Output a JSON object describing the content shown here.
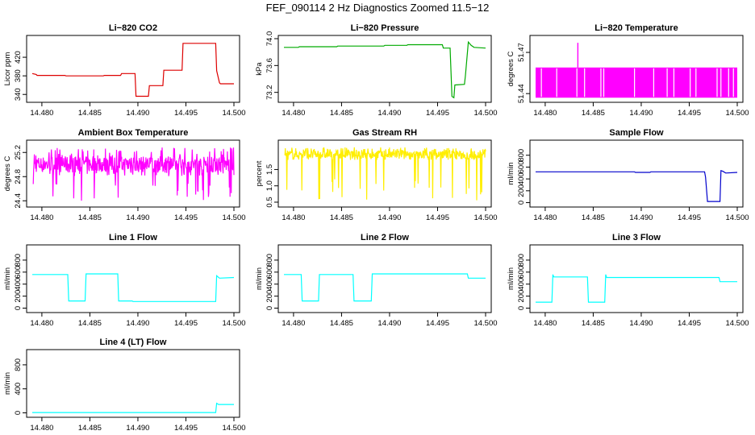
{
  "figure_title": "FEF_090114  2 Hz Diagnostics Zoomed 11.5−12",
  "chart_data": [
    {
      "type": "line",
      "title": "Li−820 CO2",
      "ylabel": "Licor ppm",
      "color": "#dd0000",
      "xlim": [
        14.479,
        14.5
      ],
      "ylim": [
        330,
        460
      ],
      "xticks": [
        14.48,
        14.485,
        14.49,
        14.495,
        14.5
      ],
      "xtick_labels": [
        "14.480",
        "14.485",
        "14.490",
        "14.495",
        "14.500"
      ],
      "yticks": [
        340,
        380,
        420
      ],
      "ytick_labels": [
        "340",
        "380",
        "420"
      ],
      "x": [
        14.479,
        14.4794,
        14.4795,
        14.4824,
        14.4825,
        14.4864,
        14.4865,
        14.4882,
        14.4883,
        14.4897,
        14.4898,
        14.4911,
        14.4912,
        14.4926,
        14.4927,
        14.4946,
        14.4947,
        14.4981,
        14.4982,
        14.4985,
        14.4986,
        14.5
      ],
      "y": [
        385,
        383,
        381,
        381,
        380,
        380,
        381,
        381,
        385,
        385,
        336,
        336,
        359,
        359,
        392,
        392,
        450,
        450,
        391,
        365,
        363,
        363
      ]
    },
    {
      "type": "line",
      "title": "Li−820 Pressure",
      "ylabel": "kPa",
      "color": "#00aa00",
      "xlim": [
        14.479,
        14.5
      ],
      "ylim": [
        73.1,
        74.0
      ],
      "xticks": [
        14.48,
        14.485,
        14.49,
        14.495,
        14.5
      ],
      "xtick_labels": [
        "14.480",
        "14.485",
        "14.490",
        "14.495",
        "14.500"
      ],
      "yticks": [
        73.2,
        73.6,
        74.0
      ],
      "ytick_labels": [
        "73.2",
        "73.6",
        "74.0"
      ],
      "x": [
        14.479,
        14.4805,
        14.4806,
        14.4845,
        14.4846,
        14.4894,
        14.4895,
        14.4918,
        14.4919,
        14.4955,
        14.4956,
        14.4963,
        14.4965,
        14.4967,
        14.4968,
        14.4978,
        14.4979,
        14.4982,
        14.4985,
        14.4988,
        14.5
      ],
      "y": [
        73.87,
        73.87,
        73.88,
        73.88,
        73.89,
        73.89,
        73.9,
        73.9,
        73.91,
        73.91,
        73.86,
        73.86,
        73.14,
        73.12,
        73.31,
        73.32,
        73.45,
        73.95,
        73.9,
        73.87,
        73.86
      ]
    },
    {
      "type": "line",
      "title": "Li−820 Temperature",
      "ylabel": "degrees C",
      "color": "#ff00ff",
      "xlim": [
        14.479,
        14.5
      ],
      "ylim": [
        51.436,
        51.48
      ],
      "xticks": [
        14.48,
        14.485,
        14.49,
        14.495,
        14.5
      ],
      "xtick_labels": [
        "14.480",
        "14.485",
        "14.490",
        "14.495",
        "14.500"
      ],
      "yticks": [
        51.44,
        51.47
      ],
      "ytick_labels": [
        "51.44",
        "51.47"
      ],
      "band": [
        51.437,
        51.459
      ],
      "gaps": [
        14.4796,
        14.4812,
        14.4833,
        14.4841,
        14.4858,
        14.4861,
        14.4893,
        14.4913,
        14.4927,
        14.4934,
        14.4951,
        14.4957,
        14.4979,
        14.4983,
        14.4991,
        14.4996
      ],
      "spike_x": 14.4834,
      "spike_y": [
        51.459,
        51.477
      ]
    },
    {
      "type": "line",
      "title": "Ambient Box Temperature",
      "ylabel": "degrees C",
      "color": "#ff00ff",
      "xlim": [
        14.479,
        14.5
      ],
      "ylim": [
        24.35,
        25.35
      ],
      "xticks": [
        14.48,
        14.485,
        14.49,
        14.495,
        14.5
      ],
      "xtick_labels": [
        "14.480",
        "14.485",
        "14.490",
        "14.495",
        "14.500"
      ],
      "yticks": [
        24.4,
        24.8,
        25.2
      ],
      "ytick_labels": [
        "24.4",
        "24.8",
        "25.2"
      ],
      "baseline": 25.0,
      "noise_range": [
        24.4,
        25.3
      ]
    },
    {
      "type": "line",
      "title": "Gas Stream RH",
      "ylabel": "percent",
      "color": "#ffee00",
      "xlim": [
        14.479,
        14.5
      ],
      "ylim": [
        0.45,
        2.3
      ],
      "xticks": [
        14.48,
        14.485,
        14.49,
        14.495,
        14.5
      ],
      "xtick_labels": [
        "14.480",
        "14.485",
        "14.490",
        "14.495",
        "14.500"
      ],
      "yticks": [
        0.5,
        1.0,
        1.5
      ],
      "ytick_labels": [
        "0.5",
        "1.0",
        "1.5"
      ],
      "baseline": 1.95,
      "noise_range": [
        0.5,
        2.2
      ]
    },
    {
      "type": "line",
      "title": "Sample Flow",
      "ylabel": "ml/min",
      "color": "#0000cc",
      "xlim": [
        14.479,
        14.5
      ],
      "ylim": [
        -20,
        1000
      ],
      "xticks": [
        14.48,
        14.485,
        14.49,
        14.495,
        14.5
      ],
      "xtick_labels": [
        "14.480",
        "14.485",
        "14.490",
        "14.495",
        "14.500"
      ],
      "yticks": [
        0,
        200,
        400,
        600,
        800
      ],
      "ytick_labels": [
        "0",
        "200",
        "400",
        "600",
        "800"
      ],
      "x": [
        14.479,
        14.4893,
        14.4894,
        14.4909,
        14.491,
        14.4966,
        14.4967,
        14.4969,
        14.4982,
        14.4983,
        14.4985,
        14.4988,
        14.5
      ],
      "y": [
        520,
        520,
        510,
        510,
        520,
        520,
        430,
        20,
        20,
        540,
        530,
        500,
        510
      ]
    },
    {
      "type": "line",
      "title": "Line 1 Flow",
      "ylabel": "ml/min",
      "color": "#00ffff",
      "xlim": [
        14.479,
        14.5
      ],
      "ylim": [
        -20,
        1000
      ],
      "xticks": [
        14.48,
        14.485,
        14.49,
        14.495,
        14.5
      ],
      "xtick_labels": [
        "14.480",
        "14.485",
        "14.490",
        "14.495",
        "14.500"
      ],
      "yticks": [
        0,
        200,
        400,
        600,
        800
      ],
      "ytick_labels": [
        "0",
        "200",
        "400",
        "600",
        "800"
      ],
      "x": [
        14.479,
        14.4827,
        14.4828,
        14.4845,
        14.4846,
        14.4879,
        14.488,
        14.4894,
        14.4895,
        14.4981,
        14.4982,
        14.4985,
        14.5
      ],
      "y": [
        560,
        560,
        120,
        120,
        570,
        570,
        120,
        120,
        110,
        110,
        540,
        500,
        510
      ]
    },
    {
      "type": "line",
      "title": "Line 2 Flow",
      "ylabel": "ml/min",
      "color": "#00ffff",
      "xlim": [
        14.479,
        14.5
      ],
      "ylim": [
        -20,
        1000
      ],
      "xticks": [
        14.48,
        14.485,
        14.49,
        14.495,
        14.5
      ],
      "xtick_labels": [
        "14.480",
        "14.485",
        "14.490",
        "14.495",
        "14.500"
      ],
      "yticks": [
        0,
        200,
        400,
        600,
        800
      ],
      "ytick_labels": [
        "0",
        "200",
        "400",
        "600",
        "800"
      ],
      "x": [
        14.479,
        14.4808,
        14.4809,
        14.4826,
        14.4827,
        14.4862,
        14.4863,
        14.4881,
        14.4882,
        14.4981,
        14.4982,
        14.5
      ],
      "y": [
        560,
        560,
        120,
        120,
        560,
        560,
        120,
        120,
        570,
        570,
        500,
        500
      ]
    },
    {
      "type": "line",
      "title": "Line 3 Flow",
      "ylabel": "ml/min",
      "color": "#00ffff",
      "xlim": [
        14.479,
        14.5
      ],
      "ylim": [
        -20,
        1000
      ],
      "xticks": [
        14.48,
        14.485,
        14.49,
        14.495,
        14.5
      ],
      "xtick_labels": [
        "14.480",
        "14.485",
        "14.490",
        "14.495",
        "14.500"
      ],
      "yticks": [
        0,
        200,
        400,
        600,
        800
      ],
      "ytick_labels": [
        "0",
        "200",
        "400",
        "600",
        "800"
      ],
      "x": [
        14.479,
        14.4807,
        14.4808,
        14.4809,
        14.4844,
        14.4845,
        14.4862,
        14.4863,
        14.4864,
        14.4981,
        14.4982,
        14.5
      ],
      "y": [
        100,
        100,
        560,
        520,
        520,
        100,
        100,
        560,
        510,
        510,
        440,
        440
      ]
    },
    {
      "type": "line",
      "title": "Line 4 (LT) Flow",
      "ylabel": "ml/min",
      "color": "#00ffff",
      "xlim": [
        14.479,
        14.5
      ],
      "ylim": [
        -20,
        1000
      ],
      "xticks": [
        14.48,
        14.485,
        14.49,
        14.495,
        14.5
      ],
      "xtick_labels": [
        "14.480",
        "14.485",
        "14.490",
        "14.495",
        "14.500"
      ],
      "yticks": [
        0,
        400,
        800
      ],
      "ytick_labels": [
        "0",
        "400",
        "800"
      ],
      "x": [
        14.479,
        14.4981,
        14.4982,
        14.4984,
        14.5
      ],
      "y": [
        5,
        5,
        160,
        140,
        140
      ]
    }
  ]
}
